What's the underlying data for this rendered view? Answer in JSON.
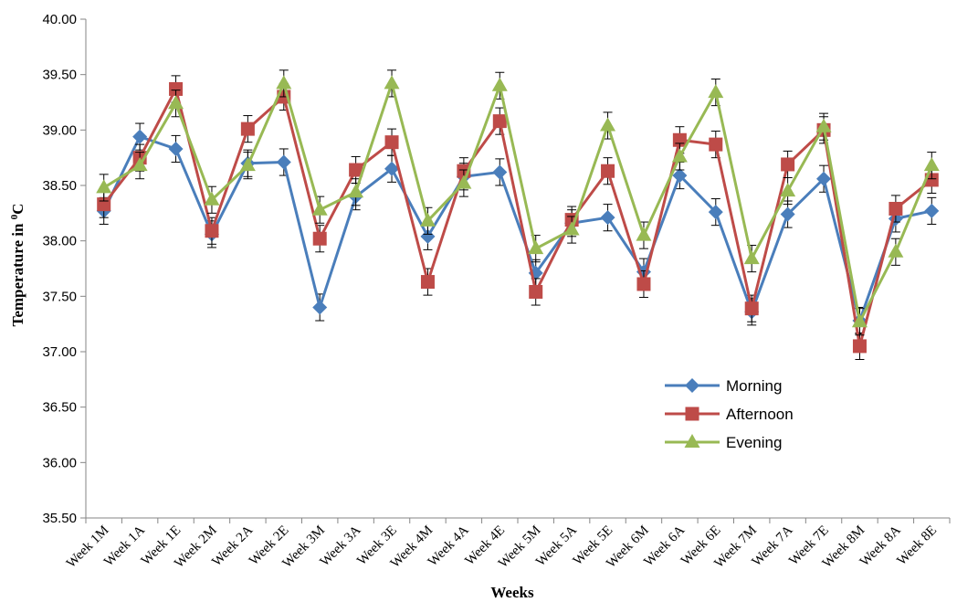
{
  "chart_data": {
    "type": "line",
    "xlabel": "Weeks",
    "ylabel_main": "Temperature in ",
    "ylabel_sup": "0",
    "ylabel_unit": "C",
    "ylim": [
      35.5,
      40.0
    ],
    "yticks": [
      "35.50",
      "36.00",
      "36.50",
      "37.00",
      "37.50",
      "38.00",
      "38.50",
      "39.00",
      "39.50",
      "40.00"
    ],
    "ytick_values": [
      35.5,
      36.0,
      36.5,
      37.0,
      37.5,
      38.0,
      38.5,
      39.0,
      39.5,
      40.0
    ],
    "grid": false,
    "error_bars": true,
    "error_bar_value": 0.12,
    "legend_position": "lower-right",
    "categories": [
      "Week 1M",
      "Week 1A",
      "Week 1E",
      "Week 2M",
      "Week 2A",
      "Week 2E",
      "Week 3M",
      "Week 3A",
      "Week 3E",
      "Week 4M",
      "Week 4A",
      "Week 4E",
      "Week 5M",
      "Week 5A",
      "Week 5E",
      "Week 6M",
      "Week 6A",
      "Week 6E",
      "Week 7M",
      "Week 7A",
      "Week 7E",
      "Week 8M",
      "Week 8A",
      "Week 8E"
    ],
    "series": [
      {
        "name": "Morning",
        "color": "#4a7ebb",
        "marker": "diamond",
        "values": [
          38.27,
          38.94,
          38.83,
          38.06,
          38.7,
          38.71,
          37.4,
          38.4,
          38.65,
          38.04,
          38.58,
          38.62,
          37.71,
          38.16,
          38.21,
          37.72,
          38.59,
          38.26,
          37.36,
          38.24,
          38.56,
          37.28,
          38.2,
          38.27
        ]
      },
      {
        "name": "Afternoon",
        "color": "#be4b48",
        "marker": "square",
        "values": [
          38.33,
          38.75,
          39.37,
          38.09,
          39.01,
          39.3,
          38.02,
          38.64,
          38.89,
          37.63,
          38.63,
          39.08,
          37.54,
          38.19,
          38.63,
          37.61,
          38.91,
          38.87,
          37.39,
          38.69,
          39.0,
          37.05,
          38.29,
          38.55
        ]
      },
      {
        "name": "Evening",
        "color": "#98b954",
        "marker": "triangle",
        "values": [
          38.48,
          38.68,
          39.24,
          38.37,
          38.68,
          39.42,
          38.28,
          38.44,
          39.42,
          38.18,
          38.52,
          39.4,
          37.93,
          38.1,
          39.04,
          38.05,
          38.76,
          39.34,
          37.84,
          38.45,
          39.03,
          37.27,
          37.9,
          38.68
        ]
      }
    ]
  }
}
